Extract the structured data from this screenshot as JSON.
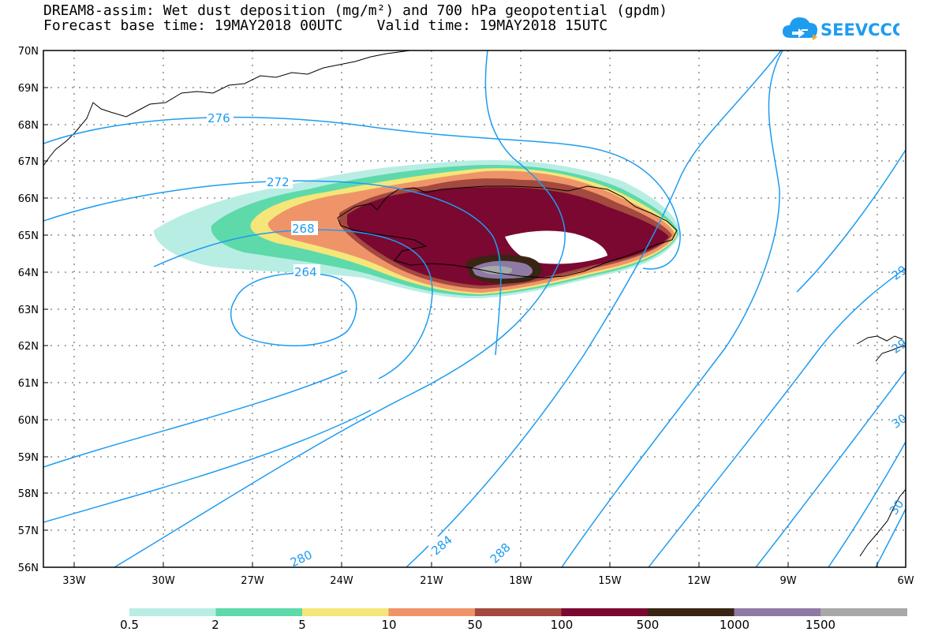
{
  "header": {
    "title_line1": "DREAM8-assim: Wet dust deposition (mg/m²) and 700 hPa geopotential (gpdm)",
    "title_line2": "Forecast base time: 19MAY2018 00UTC    Valid time: 19MAY2018 15UTC"
  },
  "logo": {
    "text": "SEEVCCC",
    "icon": "cloud-logo-icon",
    "color": "#1e9cf0"
  },
  "map": {
    "lat_labels": [
      "70N",
      "69N",
      "68N",
      "67N",
      "66N",
      "65N",
      "64N",
      "63N",
      "62N",
      "61N",
      "60N",
      "59N",
      "58N",
      "57N",
      "56N"
    ],
    "lon_labels": [
      "33W",
      "30W",
      "27W",
      "24W",
      "21W",
      "18W",
      "15W",
      "12W",
      "9W",
      "6W"
    ],
    "contour_labels": [
      "276",
      "272",
      "268",
      "264",
      "280",
      "284",
      "288",
      "29",
      "29",
      "30",
      "30"
    ],
    "contour_color": "#1e9cf0"
  },
  "legend": {
    "labels": [
      "0.5",
      "2",
      "5",
      "10",
      "50",
      "100",
      "500",
      "1000",
      "1500"
    ],
    "colors": [
      "#b8ede4",
      "#5ed9aa",
      "#f5e67a",
      "#ef9468",
      "#a3493f",
      "#7a0830",
      "#3a2414",
      "#8f7aa4",
      "#a8a8a8"
    ]
  }
}
